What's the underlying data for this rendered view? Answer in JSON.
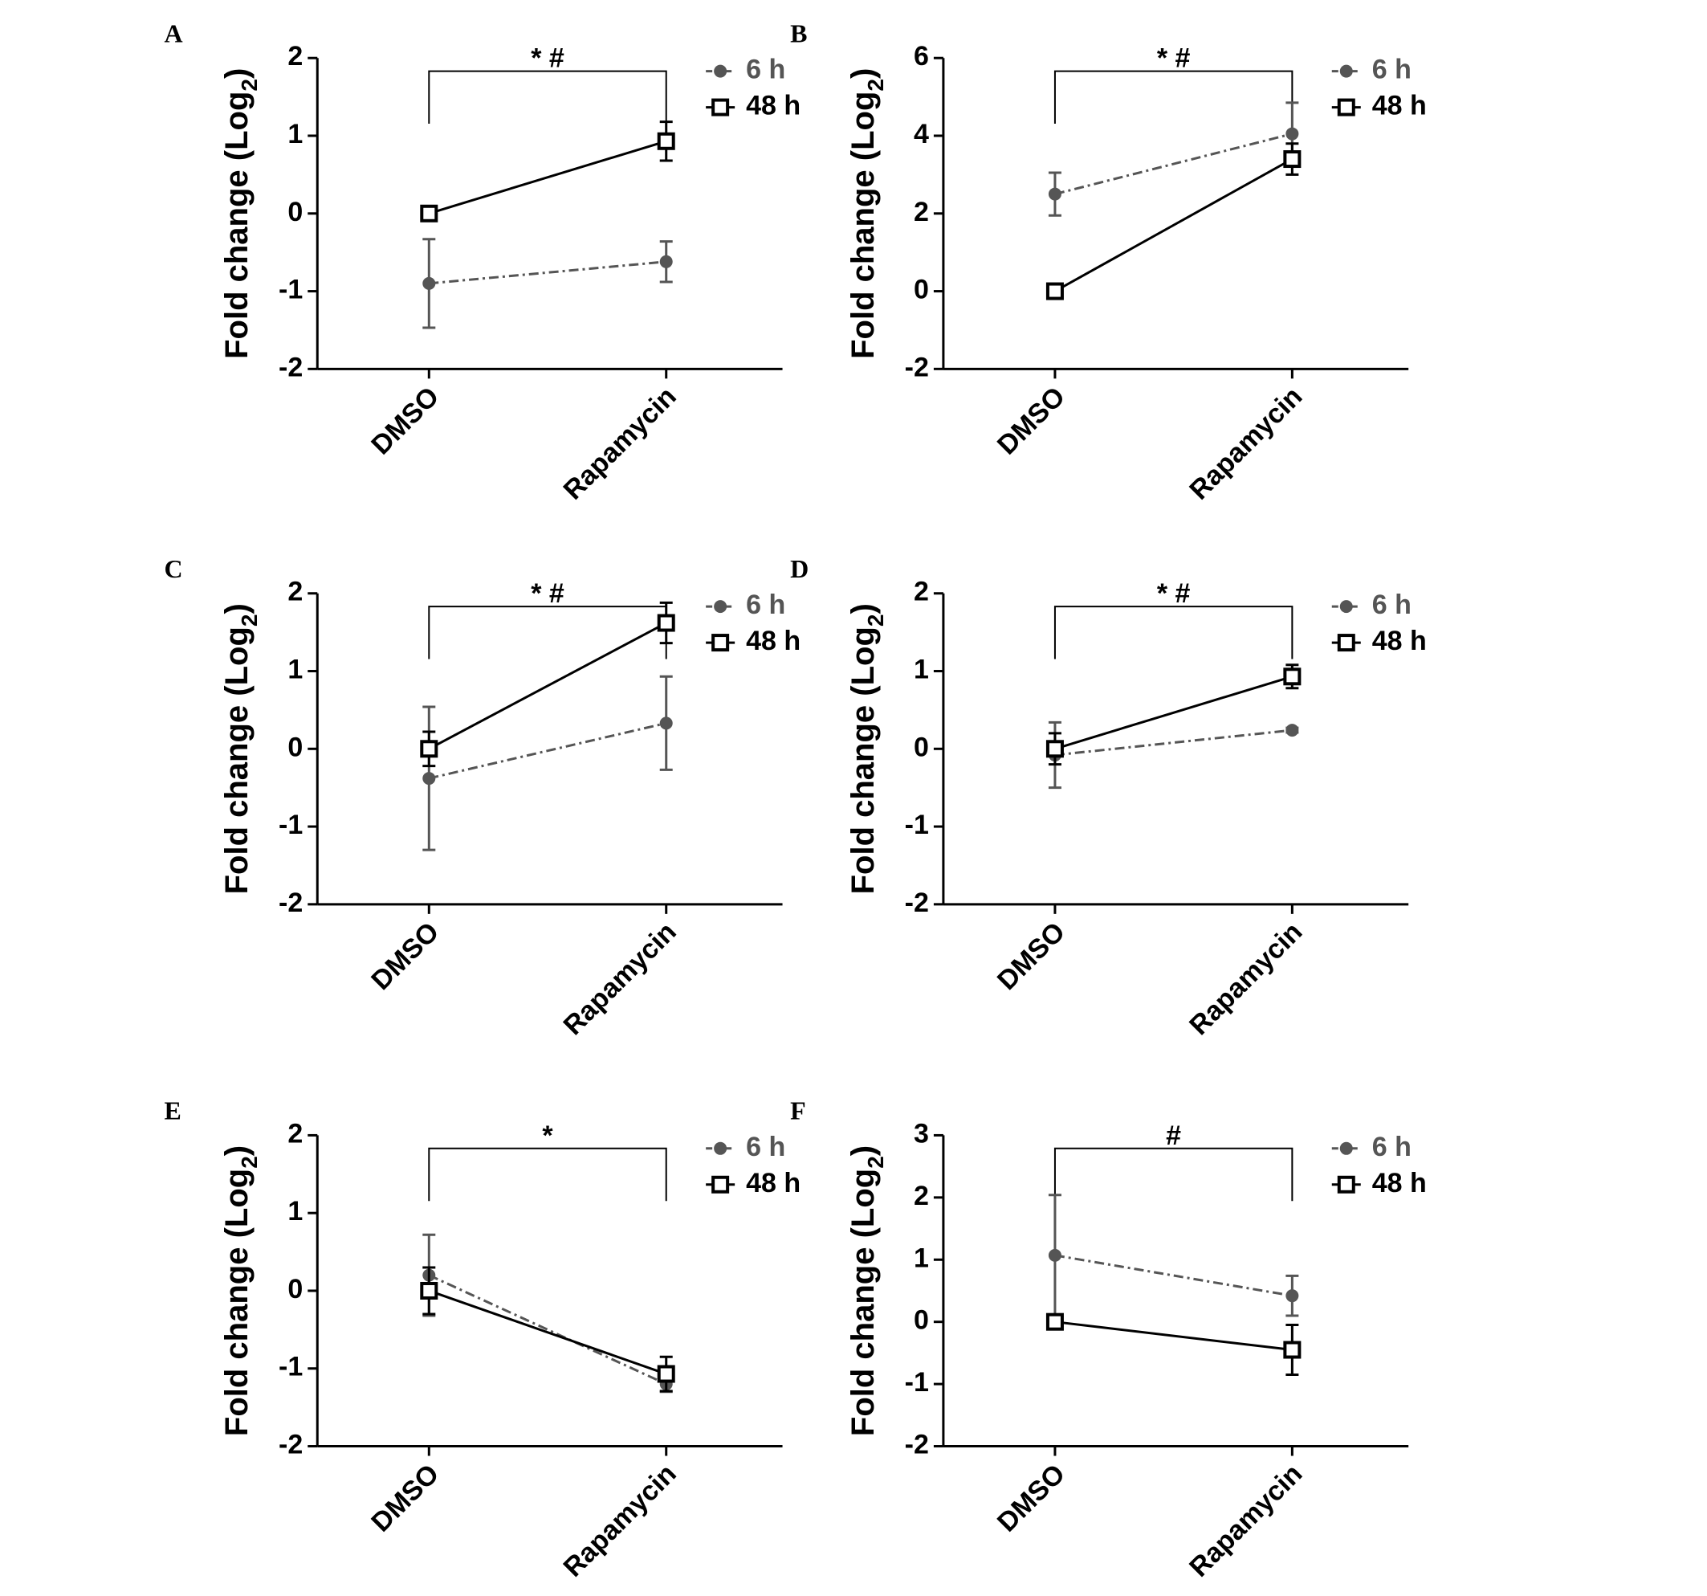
{
  "chart_data": [
    {
      "type": "line",
      "panel": "A",
      "ylabel": {
        "text": "Fold change (Log",
        "sub": "2",
        "end": ")"
      },
      "categories": [
        "DMSO",
        "Rapamycin"
      ],
      "ylim": [
        -2,
        2
      ],
      "yticks": [
        -2,
        -1,
        0,
        1,
        2
      ],
      "annotation": "* #",
      "series": [
        {
          "name": "6 h",
          "color": "#555555",
          "marker": "circle",
          "dash": true,
          "values": [
            -0.9,
            -0.62
          ],
          "errors": [
            0.57,
            0.26
          ]
        },
        {
          "name": "48 h",
          "color": "#000000",
          "marker": "square",
          "dash": false,
          "values": [
            0,
            0.93
          ],
          "errors": [
            0.05,
            0.25
          ]
        }
      ]
    },
    {
      "type": "line",
      "panel": "B",
      "ylabel": {
        "text": "Fold change (Log",
        "sub": "2",
        "end": ")"
      },
      "categories": [
        "DMSO",
        "Rapamycin"
      ],
      "ylim": [
        -2,
        6
      ],
      "yticks": [
        -2,
        0,
        2,
        4,
        6
      ],
      "annotation": "* #",
      "series": [
        {
          "name": "6 h",
          "color": "#555555",
          "marker": "circle",
          "dash": true,
          "values": [
            2.5,
            4.05
          ],
          "errors": [
            0.55,
            0.8
          ]
        },
        {
          "name": "48 h",
          "color": "#000000",
          "marker": "square",
          "dash": false,
          "values": [
            0,
            3.4
          ],
          "errors": [
            0.1,
            0.4
          ]
        }
      ]
    },
    {
      "type": "line",
      "panel": "C",
      "ylabel": {
        "text": "Fold change (Log",
        "sub": "2",
        "end": ")"
      },
      "categories": [
        "DMSO",
        "Rapamycin"
      ],
      "ylim": [
        -2,
        2
      ],
      "yticks": [
        -2,
        -1,
        0,
        1,
        2
      ],
      "annotation": "* #",
      "series": [
        {
          "name": "6 h",
          "color": "#555555",
          "marker": "circle",
          "dash": true,
          "values": [
            -0.38,
            0.33
          ],
          "errors": [
            0.92,
            0.6
          ]
        },
        {
          "name": "48 h",
          "color": "#000000",
          "marker": "square",
          "dash": false,
          "values": [
            0,
            1.62
          ],
          "errors": [
            0.22,
            0.26
          ]
        }
      ]
    },
    {
      "type": "line",
      "panel": "D",
      "ylabel": {
        "text": "Fold change (Log",
        "sub": "2",
        "end": ")"
      },
      "categories": [
        "DMSO",
        "Rapamycin"
      ],
      "ylim": [
        -2,
        2
      ],
      "yticks": [
        -2,
        -1,
        0,
        1,
        2
      ],
      "annotation": "* #",
      "series": [
        {
          "name": "6 h",
          "color": "#555555",
          "marker": "circle",
          "dash": true,
          "values": [
            -0.08,
            0.24
          ],
          "errors": [
            0.42,
            0.03
          ]
        },
        {
          "name": "48 h",
          "color": "#000000",
          "marker": "square",
          "dash": false,
          "values": [
            0,
            0.93
          ],
          "errors": [
            0.2,
            0.15
          ]
        }
      ]
    },
    {
      "type": "line",
      "panel": "E",
      "ylabel": {
        "text": "Fold change (Log",
        "sub": "2",
        "end": ")"
      },
      "categories": [
        "DMSO",
        "Rapamycin"
      ],
      "ylim": [
        -2,
        2
      ],
      "yticks": [
        -2,
        -1,
        0,
        1,
        2
      ],
      "annotation": "*",
      "series": [
        {
          "name": "6 h",
          "color": "#555555",
          "marker": "circle",
          "dash": true,
          "values": [
            0.2,
            -1.2
          ],
          "errors": [
            0.52,
            0.1
          ]
        },
        {
          "name": "48 h",
          "color": "#000000",
          "marker": "square",
          "dash": false,
          "values": [
            0,
            -1.07
          ],
          "errors": [
            0.3,
            0.22
          ]
        }
      ]
    },
    {
      "type": "line",
      "panel": "F",
      "ylabel": {
        "text": "Fold change (Log",
        "sub": "2",
        "end": ")"
      },
      "categories": [
        "DMSO",
        "Rapamycin"
      ],
      "ylim": [
        -2,
        3
      ],
      "yticks": [
        -2,
        -1,
        0,
        1,
        2,
        3
      ],
      "annotation": "#",
      "series": [
        {
          "name": "6 h",
          "color": "#555555",
          "marker": "circle",
          "dash": true,
          "values": [
            1.07,
            0.42
          ],
          "errors": [
            0.97,
            0.32
          ]
        },
        {
          "name": "48 h",
          "color": "#000000",
          "marker": "square",
          "dash": false,
          "values": [
            0,
            -0.45
          ],
          "errors": [
            0.03,
            0.4
          ]
        }
      ]
    }
  ]
}
